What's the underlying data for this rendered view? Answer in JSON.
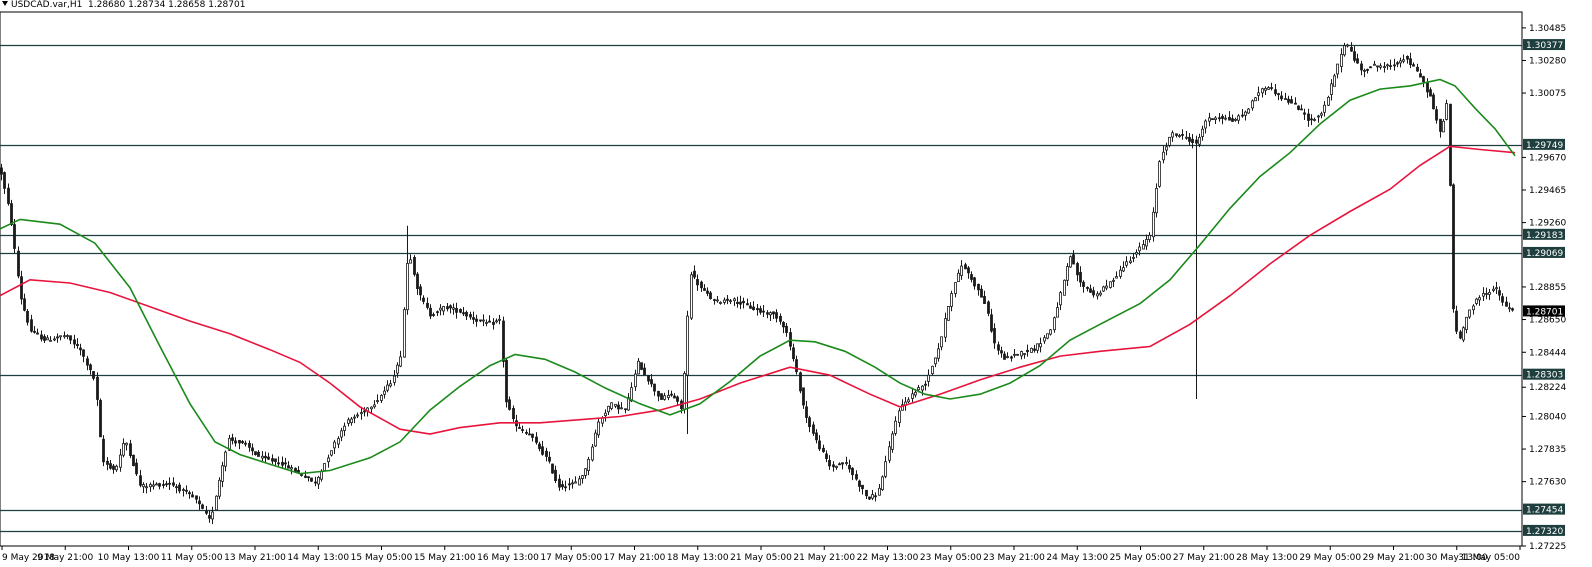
{
  "header": {
    "title": "USDCAD.var,H1",
    "ohlc": "1.28680 1.28734 1.28658 1.28701"
  },
  "colors": {
    "background": "#ffffff",
    "candle": "#1a1a1a",
    "level_line": "#1f3f3f",
    "label_bg": "#1f3f3f",
    "current_label_bg": "#000000",
    "ma_fast": "#1a8a1a",
    "ma_slow": "#e8143c"
  },
  "chart_data": {
    "type": "candlestick",
    "symbol": "USDCAD.var",
    "timeframe": "H1",
    "ylim": [
      1.27225,
      1.30585
    ],
    "y_ticks": [
      "1.30485",
      "1.30280",
      "1.30075",
      "1.29670",
      "1.29465",
      "1.29260",
      "1.28855",
      "1.28650",
      "1.28444",
      "1.28224",
      "1.28040",
      "1.27835",
      "1.27630",
      "1.27225"
    ],
    "x_ticks": [
      "9 May 2018",
      "9 May 21:00",
      "10 May 13:00",
      "11 May 05:00",
      "13 May 21:00",
      "14 May 13:00",
      "15 May 05:00",
      "15 May 21:00",
      "16 May 13:00",
      "17 May 05:00",
      "17 May 21:00",
      "18 May 13:00",
      "21 May 05:00",
      "21 May 21:00",
      "22 May 13:00",
      "23 May 05:00",
      "23 May 21:00",
      "24 May 13:00",
      "25 May 05:00",
      "27 May 21:00",
      "28 May 13:00",
      "29 May 05:00",
      "29 May 21:00",
      "30 May 13:00",
      "31 May 05:00"
    ],
    "levels": [
      {
        "value": 1.30377,
        "label": "1.30377"
      },
      {
        "value": 1.29749,
        "label": "1.29749"
      },
      {
        "value": 1.29183,
        "label": "1.29183"
      },
      {
        "value": 1.29069,
        "label": "1.29069"
      },
      {
        "value": 1.28303,
        "label": "1.28303"
      },
      {
        "value": 1.27454,
        "label": "1.27454"
      },
      {
        "value": 1.2732,
        "label": "1.27320"
      }
    ],
    "current_price": {
      "value": 1.28701,
      "label": "1.28701"
    },
    "price_path": [
      [
        0,
        1.296
      ],
      [
        10,
        1.293
      ],
      [
        20,
        1.288
      ],
      [
        30,
        1.2858
      ],
      [
        45,
        1.2852
      ],
      [
        65,
        1.2855
      ],
      [
        80,
        1.2846
      ],
      [
        95,
        1.2826
      ],
      [
        102,
        1.2776
      ],
      [
        115,
        1.277
      ],
      [
        125,
        1.279
      ],
      [
        140,
        1.276
      ],
      [
        170,
        1.2762
      ],
      [
        195,
        1.2752
      ],
      [
        210,
        1.2738
      ],
      [
        218,
        1.2762
      ],
      [
        228,
        1.279
      ],
      [
        245,
        1.2786
      ],
      [
        260,
        1.2778
      ],
      [
        280,
        1.2775
      ],
      [
        300,
        1.2768
      ],
      [
        315,
        1.2762
      ],
      [
        330,
        1.2782
      ],
      [
        345,
        1.28
      ],
      [
        360,
        1.2806
      ],
      [
        375,
        1.2813
      ],
      [
        390,
        1.2825
      ],
      [
        400,
        1.284
      ],
      [
        408,
        1.291
      ],
      [
        418,
        1.2882
      ],
      [
        430,
        1.2868
      ],
      [
        445,
        1.2873
      ],
      [
        460,
        1.287
      ],
      [
        475,
        1.2865
      ],
      [
        490,
        1.2862
      ],
      [
        500,
        1.2865
      ],
      [
        505,
        1.2815
      ],
      [
        515,
        1.2798
      ],
      [
        530,
        1.2792
      ],
      [
        548,
        1.2776
      ],
      [
        558,
        1.276
      ],
      [
        575,
        1.2762
      ],
      [
        585,
        1.277
      ],
      [
        598,
        1.28
      ],
      [
        610,
        1.2812
      ],
      [
        625,
        1.2808
      ],
      [
        638,
        1.2838
      ],
      [
        650,
        1.2825
      ],
      [
        660,
        1.2815
      ],
      [
        672,
        1.2818
      ],
      [
        682,
        1.2808
      ],
      [
        690,
        1.2895
      ],
      [
        700,
        1.2885
      ],
      [
        715,
        1.2876
      ],
      [
        730,
        1.2878
      ],
      [
        745,
        1.2874
      ],
      [
        760,
        1.287
      ],
      [
        775,
        1.2868
      ],
      [
        785,
        1.286
      ],
      [
        795,
        1.2835
      ],
      [
        805,
        1.2805
      ],
      [
        815,
        1.279
      ],
      [
        830,
        1.2772
      ],
      [
        845,
        1.2775
      ],
      [
        858,
        1.2762
      ],
      [
        868,
        1.2752
      ],
      [
        878,
        1.2756
      ],
      [
        888,
        1.2782
      ],
      [
        898,
        1.2808
      ],
      [
        912,
        1.2818
      ],
      [
        925,
        1.2825
      ],
      [
        940,
        1.285
      ],
      [
        950,
        1.288
      ],
      [
        962,
        1.29
      ],
      [
        972,
        1.289
      ],
      [
        985,
        1.2875
      ],
      [
        995,
        1.2848
      ],
      [
        1005,
        1.284
      ],
      [
        1020,
        1.2844
      ],
      [
        1035,
        1.2847
      ],
      [
        1050,
        1.2858
      ],
      [
        1060,
        1.288
      ],
      [
        1070,
        1.2905
      ],
      [
        1080,
        1.2888
      ],
      [
        1095,
        1.288
      ],
      [
        1110,
        1.2888
      ],
      [
        1125,
        1.29
      ],
      [
        1140,
        1.291
      ],
      [
        1150,
        1.2918
      ],
      [
        1160,
        1.2968
      ],
      [
        1172,
        1.2982
      ],
      [
        1185,
        1.298
      ],
      [
        1196,
        1.2975
      ],
      [
        1205,
        1.299
      ],
      [
        1218,
        1.2993
      ],
      [
        1232,
        1.299
      ],
      [
        1245,
        1.2995
      ],
      [
        1258,
        1.3008
      ],
      [
        1268,
        1.3012
      ],
      [
        1280,
        1.3005
      ],
      [
        1295,
        1.3
      ],
      [
        1310,
        1.299
      ],
      [
        1322,
        1.2995
      ],
      [
        1335,
        1.302
      ],
      [
        1345,
        1.304
      ],
      [
        1360,
        1.3022
      ],
      [
        1375,
        1.3025
      ],
      [
        1390,
        1.3024
      ],
      [
        1405,
        1.303
      ],
      [
        1420,
        1.3018
      ],
      [
        1430,
        1.3005
      ],
      [
        1440,
        1.2982
      ],
      [
        1448,
        1.3005
      ],
      [
        1452,
        1.2875
      ],
      [
        1458,
        1.285
      ],
      [
        1468,
        1.287
      ],
      [
        1480,
        1.288
      ],
      [
        1495,
        1.2885
      ],
      [
        1505,
        1.2873
      ],
      [
        1515,
        1.287
      ]
    ],
    "spikes": [
      {
        "x": 1196,
        "low": 1.2815
      },
      {
        "x": 1448,
        "low": 1.2948
      },
      {
        "x": 688,
        "low": 1.2793
      },
      {
        "x": 408,
        "high": 1.2924
      }
    ],
    "ma_fast": [
      [
        0,
        1.2922
      ],
      [
        20,
        1.2928
      ],
      [
        60,
        1.2925
      ],
      [
        95,
        1.2913
      ],
      [
        130,
        1.2885
      ],
      [
        160,
        1.2848
      ],
      [
        190,
        1.2812
      ],
      [
        215,
        1.2788
      ],
      [
        240,
        1.278
      ],
      [
        270,
        1.2774
      ],
      [
        300,
        1.2768
      ],
      [
        330,
        1.277
      ],
      [
        370,
        1.2778
      ],
      [
        400,
        1.2788
      ],
      [
        430,
        1.2808
      ],
      [
        460,
        1.2823
      ],
      [
        490,
        1.2836
      ],
      [
        515,
        1.2843
      ],
      [
        545,
        1.284
      ],
      [
        575,
        1.2832
      ],
      [
        605,
        1.2822
      ],
      [
        640,
        1.2812
      ],
      [
        670,
        1.2805
      ],
      [
        700,
        1.2812
      ],
      [
        730,
        1.2826
      ],
      [
        760,
        1.2842
      ],
      [
        790,
        1.2852
      ],
      [
        815,
        1.2851
      ],
      [
        845,
        1.2845
      ],
      [
        875,
        1.2835
      ],
      [
        900,
        1.2825
      ],
      [
        925,
        1.2818
      ],
      [
        950,
        1.2815
      ],
      [
        980,
        1.2818
      ],
      [
        1010,
        1.2825
      ],
      [
        1040,
        1.2836
      ],
      [
        1070,
        1.2852
      ],
      [
        1100,
        1.2862
      ],
      [
        1140,
        1.2875
      ],
      [
        1170,
        1.289
      ],
      [
        1200,
        1.2912
      ],
      [
        1230,
        1.2935
      ],
      [
        1260,
        1.2955
      ],
      [
        1290,
        1.297
      ],
      [
        1320,
        1.2988
      ],
      [
        1350,
        1.3003
      ],
      [
        1380,
        1.301
      ],
      [
        1410,
        1.3012
      ],
      [
        1440,
        1.3016
      ],
      [
        1455,
        1.3012
      ],
      [
        1475,
        1.2998
      ],
      [
        1495,
        1.2985
      ],
      [
        1515,
        1.2968
      ]
    ],
    "ma_slow": [
      [
        0,
        1.288
      ],
      [
        30,
        1.289
      ],
      [
        70,
        1.2888
      ],
      [
        110,
        1.2882
      ],
      [
        150,
        1.2873
      ],
      [
        190,
        1.2864
      ],
      [
        230,
        1.2856
      ],
      [
        270,
        1.2846
      ],
      [
        300,
        1.2838
      ],
      [
        330,
        1.2825
      ],
      [
        360,
        1.281
      ],
      [
        400,
        1.2796
      ],
      [
        430,
        1.2793
      ],
      [
        460,
        1.2797
      ],
      [
        500,
        1.28
      ],
      [
        540,
        1.28
      ],
      [
        580,
        1.2802
      ],
      [
        620,
        1.2804
      ],
      [
        660,
        1.2808
      ],
      [
        700,
        1.2815
      ],
      [
        740,
        1.2825
      ],
      [
        790,
        1.2835
      ],
      [
        830,
        1.283
      ],
      [
        870,
        1.2818
      ],
      [
        900,
        1.281
      ],
      [
        940,
        1.2818
      ],
      [
        980,
        1.2827
      ],
      [
        1020,
        1.2835
      ],
      [
        1060,
        1.2842
      ],
      [
        1100,
        1.2845
      ],
      [
        1150,
        1.2848
      ],
      [
        1190,
        1.2862
      ],
      [
        1230,
        1.288
      ],
      [
        1270,
        1.29
      ],
      [
        1310,
        1.2918
      ],
      [
        1350,
        1.2933
      ],
      [
        1390,
        1.2947
      ],
      [
        1420,
        1.2962
      ],
      [
        1450,
        1.2974
      ],
      [
        1480,
        1.2972
      ],
      [
        1515,
        1.297
      ]
    ]
  }
}
